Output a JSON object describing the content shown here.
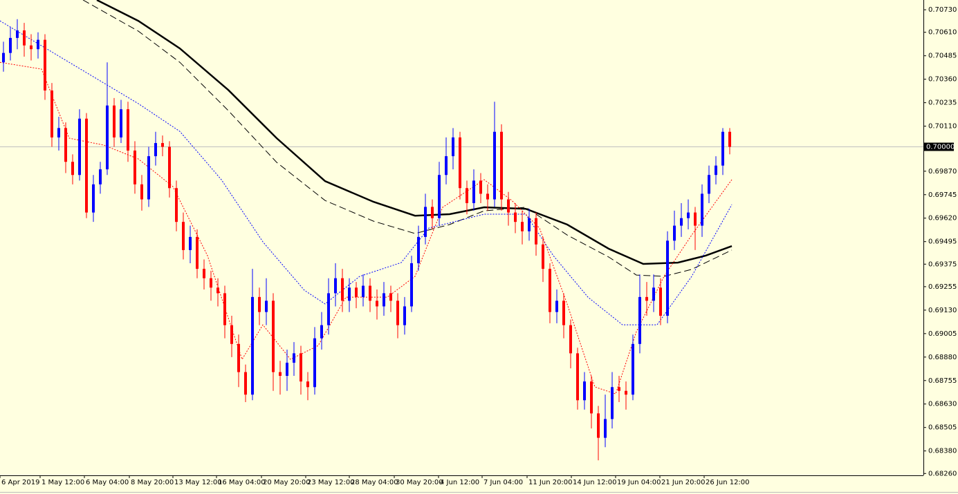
{
  "chart_data": {
    "type": "candlestick",
    "up_color": "#0000ff",
    "down_color": "#ff0000",
    "ylim": [
      0.6825,
      0.70782
    ],
    "xlim": [
      0,
      133.5
    ],
    "yticks": [
      {
        "value": 0.7073,
        "label": "0.70730"
      },
      {
        "value": 0.7061,
        "label": "0.70610"
      },
      {
        "value": 0.70485,
        "label": "0.70485"
      },
      {
        "value": 0.7036,
        "label": "0.70360"
      },
      {
        "value": 0.70235,
        "label": "0.70235"
      },
      {
        "value": 0.7011,
        "label": "0.70110"
      },
      {
        "value": 0.6987,
        "label": "0.69870"
      },
      {
        "value": 0.69745,
        "label": "0.69745"
      },
      {
        "value": 0.6962,
        "label": "0.69620"
      },
      {
        "value": 0.69495,
        "label": "0.69495"
      },
      {
        "value": 0.69375,
        "label": "0.69375"
      },
      {
        "value": 0.69255,
        "label": "0.69255"
      },
      {
        "value": 0.6913,
        "label": "0.69130"
      },
      {
        "value": 0.69005,
        "label": "0.69005"
      },
      {
        "value": 0.6888,
        "label": "0.68880"
      },
      {
        "value": 0.68755,
        "label": "0.68755"
      },
      {
        "value": 0.6863,
        "label": "0.68630"
      },
      {
        "value": 0.68505,
        "label": "0.68505"
      },
      {
        "value": 0.6838,
        "label": "0.68380"
      },
      {
        "value": 0.6826,
        "label": "0.68260"
      }
    ],
    "xticks": [
      {
        "value": 0,
        "label": "6 Apr 2019"
      },
      {
        "value": 5.8,
        "label": "1 May 12:00"
      },
      {
        "value": 12.2,
        "label": "6 May 04:00"
      },
      {
        "value": 18.7,
        "label": "8 May 20:00"
      },
      {
        "value": 25,
        "label": "13 May 12:00"
      },
      {
        "value": 31.3,
        "label": "16 May 04:00"
      },
      {
        "value": 37.8,
        "label": "20 May 20:00"
      },
      {
        "value": 44.2,
        "label": "23 May 12:00"
      },
      {
        "value": 50.5,
        "label": "28 May 04:00"
      },
      {
        "value": 57,
        "label": "30 May 20:00"
      },
      {
        "value": 63.4,
        "label": "4 Jun 12:00"
      },
      {
        "value": 69.7,
        "label": "7 Jun 04:00"
      },
      {
        "value": 76.2,
        "label": "11 Jun 20:00"
      },
      {
        "value": 82.6,
        "label": "14 Jun 12:00"
      },
      {
        "value": 89,
        "label": "19 Jun 04:00"
      },
      {
        "value": 95.4,
        "label": "21 Jun 20:00"
      },
      {
        "value": 101.8,
        "label": "26 Jun 12:00"
      }
    ],
    "price_line": {
      "value": 0.7,
      "label": "0.70000"
    },
    "open": [
      0.7045,
      0.705,
      0.7058,
      0.7062,
      0.7054,
      0.7052,
      0.7057,
      0.703,
      0.7005,
      0.701,
      0.6992,
      0.6985,
      0.7015,
      0.6965,
      0.698,
      0.6988,
      0.7022,
      0.7005,
      0.702,
      0.6998,
      0.698,
      0.6972,
      0.6995,
      0.7002,
      0.7,
      0.6978,
      0.696,
      0.6945,
      0.6952,
      0.6935,
      0.693,
      0.6925,
      0.6922,
      0.6905,
      0.6895,
      0.688,
      0.6868,
      0.692,
      0.6912,
      0.6918,
      0.688,
      0.6878,
      0.6885,
      0.689,
      0.6875,
      0.6872,
      0.6898,
      0.6905,
      0.6922,
      0.693,
      0.6918,
      0.6925,
      0.692,
      0.6926,
      0.6918,
      0.6915,
      0.6922,
      0.6918,
      0.6905,
      0.6915,
      0.6938,
      0.6952,
      0.6968,
      0.6962,
      0.6985,
      0.6995,
      0.7005,
      0.6978,
      0.697,
      0.6982,
      0.6975,
      0.6972,
      0.7008,
      0.6972,
      0.6965,
      0.696,
      0.6955,
      0.6962,
      0.6948,
      0.6935,
      0.6912,
      0.6918,
      0.6905,
      0.689,
      0.6865,
      0.6875,
      0.6858,
      0.6845,
      0.6855,
      0.6872,
      0.687,
      0.6868,
      0.6895,
      0.692,
      0.6918,
      0.6925,
      0.691,
      0.695,
      0.6958,
      0.6962,
      0.6965,
      0.6958,
      0.6975,
      0.6985,
      0.699,
      0.7008
    ],
    "high": [
      0.7056,
      0.7064,
      0.7068,
      0.7066,
      0.706,
      0.7061,
      0.706,
      0.7034,
      0.7016,
      0.7013,
      0.6996,
      0.702,
      0.7018,
      0.6985,
      0.6992,
      0.7045,
      0.7026,
      0.7025,
      0.7024,
      0.7003,
      0.6985,
      0.7,
      0.7008,
      0.7006,
      0.7003,
      0.6982,
      0.6965,
      0.6958,
      0.6956,
      0.694,
      0.6934,
      0.693,
      0.6926,
      0.691,
      0.69,
      0.6884,
      0.6935,
      0.6925,
      0.693,
      0.6922,
      0.6886,
      0.6892,
      0.6896,
      0.6894,
      0.688,
      0.6904,
      0.6912,
      0.693,
      0.6938,
      0.6935,
      0.693,
      0.6928,
      0.6932,
      0.693,
      0.6924,
      0.6928,
      0.6926,
      0.6922,
      0.692,
      0.6942,
      0.6958,
      0.6975,
      0.6972,
      0.6992,
      0.7005,
      0.701,
      0.7008,
      0.6982,
      0.6988,
      0.6986,
      0.698,
      0.7024,
      0.7012,
      0.6976,
      0.697,
      0.6966,
      0.6967,
      0.6965,
      0.6952,
      0.6938,
      0.6924,
      0.6922,
      0.6908,
      0.6893,
      0.688,
      0.6878,
      0.6862,
      0.6868,
      0.688,
      0.6878,
      0.6875,
      0.69,
      0.6932,
      0.6928,
      0.6932,
      0.693,
      0.6955,
      0.6966,
      0.697,
      0.6972,
      0.6968,
      0.698,
      0.699,
      0.6995,
      0.701,
      0.701
    ],
    "low": [
      0.704,
      0.7046,
      0.7052,
      0.7048,
      0.7046,
      0.7047,
      0.7025,
      0.7,
      0.6998,
      0.6986,
      0.698,
      0.6982,
      0.6962,
      0.696,
      0.6975,
      0.6985,
      0.7,
      0.7002,
      0.6992,
      0.6975,
      0.6966,
      0.6968,
      0.699,
      0.6995,
      0.6973,
      0.6955,
      0.694,
      0.6938,
      0.693,
      0.6924,
      0.6918,
      0.6915,
      0.6898,
      0.6888,
      0.6872,
      0.6864,
      0.6865,
      0.6905,
      0.6905,
      0.687,
      0.6868,
      0.687,
      0.6878,
      0.6868,
      0.6865,
      0.6868,
      0.6892,
      0.69,
      0.6915,
      0.6912,
      0.6912,
      0.6914,
      0.6915,
      0.6912,
      0.6908,
      0.691,
      0.6912,
      0.6898,
      0.69,
      0.6912,
      0.6934,
      0.6948,
      0.6956,
      0.6958,
      0.698,
      0.6988,
      0.6972,
      0.6964,
      0.6966,
      0.697,
      0.6966,
      0.6968,
      0.6966,
      0.6958,
      0.6954,
      0.6948,
      0.695,
      0.6942,
      0.6928,
      0.6906,
      0.6906,
      0.6898,
      0.6882,
      0.686,
      0.686,
      0.685,
      0.6833,
      0.684,
      0.685,
      0.6864,
      0.686,
      0.6865,
      0.689,
      0.691,
      0.6912,
      0.6905,
      0.6906,
      0.6945,
      0.6952,
      0.6956,
      0.6945,
      0.6952,
      0.697,
      0.698,
      0.6985,
      0.6996
    ],
    "close": [
      0.705,
      0.7058,
      0.7062,
      0.7054,
      0.7052,
      0.7057,
      0.703,
      0.7005,
      0.701,
      0.6992,
      0.6985,
      0.7015,
      0.6965,
      0.698,
      0.6988,
      0.7022,
      0.7005,
      0.702,
      0.6998,
      0.698,
      0.6972,
      0.6995,
      0.7002,
      0.7,
      0.6978,
      0.696,
      0.6945,
      0.6952,
      0.6935,
      0.693,
      0.6925,
      0.6922,
      0.6905,
      0.6895,
      0.688,
      0.6868,
      0.692,
      0.6912,
      0.6918,
      0.688,
      0.6878,
      0.6885,
      0.689,
      0.6875,
      0.6872,
      0.6898,
      0.6905,
      0.6922,
      0.693,
      0.6918,
      0.6925,
      0.692,
      0.6926,
      0.6918,
      0.6915,
      0.6922,
      0.6918,
      0.6905,
      0.6915,
      0.6938,
      0.6952,
      0.6968,
      0.6962,
      0.6985,
      0.6995,
      0.7005,
      0.6978,
      0.697,
      0.6982,
      0.6975,
      0.6972,
      0.7008,
      0.6972,
      0.6965,
      0.696,
      0.6955,
      0.6962,
      0.6948,
      0.6935,
      0.6912,
      0.6918,
      0.6905,
      0.689,
      0.6865,
      0.6875,
      0.6858,
      0.6845,
      0.6855,
      0.6872,
      0.687,
      0.6868,
      0.6895,
      0.692,
      0.6918,
      0.6925,
      0.691,
      0.695,
      0.6958,
      0.6962,
      0.6965,
      0.6958,
      0.6975,
      0.6985,
      0.699,
      0.7008,
      0.7
    ],
    "lines": [
      {
        "color": "#000000",
        "style": "solid",
        "x": [
          14,
          20,
          26,
          33,
          40,
          47,
          54,
          60,
          65,
          70,
          76,
          82,
          88,
          93,
          98,
          102,
          105.8
        ],
        "values": [
          0.70782,
          0.70671,
          0.70524,
          0.70303,
          0.70046,
          0.69817,
          0.69707,
          0.69633,
          0.69641,
          0.69678,
          0.6967,
          0.69586,
          0.69457,
          0.69376,
          0.69383,
          0.6942,
          0.69471
        ]
      },
      {
        "color": "#000000",
        "style": "dashed",
        "x": [
          12,
          20,
          26,
          33,
          40,
          47,
          54,
          60,
          65,
          70,
          76,
          82,
          88,
          92,
          96,
          100,
          105.8
        ],
        "values": [
          0.70782,
          0.70616,
          0.7045,
          0.70193,
          0.69917,
          0.69714,
          0.69604,
          0.69538,
          0.69586,
          0.69659,
          0.69678,
          0.6953,
          0.69413,
          0.69317,
          0.6931,
          0.69347,
          0.6945
        ]
      },
      {
        "color": "#0000ff",
        "style": "dotted",
        "x": [
          0,
          10,
          20,
          26,
          32,
          38,
          44,
          47,
          52,
          58,
          62,
          66,
          70,
          76,
          80,
          85,
          90,
          95,
          100,
          105.8
        ],
        "values": [
          0.70671,
          0.7045,
          0.7023,
          0.70082,
          0.69825,
          0.69494,
          0.69236,
          0.69163,
          0.6931,
          0.69383,
          0.69567,
          0.69604,
          0.69641,
          0.69641,
          0.6942,
          0.69199,
          0.69052,
          0.69052,
          0.6931,
          0.69692
        ]
      },
      {
        "color": "#ff0000",
        "style": "dotted",
        "x": [
          0,
          6,
          10,
          15,
          20,
          25,
          30,
          35,
          38,
          42,
          46,
          50,
          56,
          60,
          64,
          70,
          74,
          78,
          82,
          86,
          89,
          92,
          96,
          100,
          105.8
        ],
        "values": [
          0.7045,
          0.70414,
          0.70046,
          0.70009,
          0.69935,
          0.69788,
          0.6942,
          0.68868,
          0.69052,
          0.68868,
          0.68941,
          0.69199,
          0.69199,
          0.6931,
          0.69678,
          0.69825,
          0.69714,
          0.69567,
          0.69162,
          0.68721,
          0.68684,
          0.69015,
          0.6931,
          0.6953,
          0.69825
        ]
      }
    ]
  }
}
